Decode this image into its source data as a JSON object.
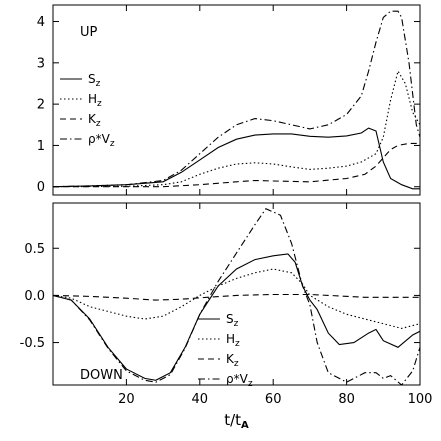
{
  "chart_data": [
    {
      "type": "line",
      "panel_label": "UP",
      "xlim": [
        0,
        100
      ],
      "ylim": [
        -0.2,
        4.4
      ],
      "yticks": [
        0,
        1,
        2,
        3,
        4
      ],
      "ytick_labels": [
        "0",
        "1",
        "2",
        "3",
        "4"
      ],
      "xticks": [
        20,
        40,
        60,
        80,
        100
      ],
      "x_tick_labels_shown": false,
      "xlabel": "",
      "ylabel": "",
      "grid": false,
      "legend_position": "left",
      "series": [
        {
          "name": "S_z",
          "label_main": "S",
          "label_sub": "z",
          "dash": "",
          "points": [
            [
              0,
              0
            ],
            [
              10,
              0.02
            ],
            [
              20,
              0.05
            ],
            [
              30,
              0.12
            ],
            [
              35,
              0.35
            ],
            [
              40,
              0.65
            ],
            [
              45,
              0.95
            ],
            [
              50,
              1.15
            ],
            [
              55,
              1.25
            ],
            [
              60,
              1.28
            ],
            [
              65,
              1.28
            ],
            [
              70,
              1.22
            ],
            [
              75,
              1.2
            ],
            [
              80,
              1.23
            ],
            [
              84,
              1.3
            ],
            [
              86,
              1.42
            ],
            [
              88,
              1.35
            ],
            [
              90,
              0.6
            ],
            [
              92,
              0.2
            ],
            [
              95,
              0.05
            ],
            [
              98,
              -0.05
            ],
            [
              100,
              -0.05
            ]
          ]
        },
        {
          "name": "H_z",
          "label_main": "H",
          "label_sub": "z",
          "dash": "1.5,2.5",
          "points": [
            [
              0,
              0
            ],
            [
              20,
              0.01
            ],
            [
              30,
              0.05
            ],
            [
              35,
              0.12
            ],
            [
              40,
              0.3
            ],
            [
              45,
              0.45
            ],
            [
              50,
              0.55
            ],
            [
              55,
              0.58
            ],
            [
              60,
              0.55
            ],
            [
              65,
              0.48
            ],
            [
              70,
              0.42
            ],
            [
              75,
              0.45
            ],
            [
              80,
              0.5
            ],
            [
              84,
              0.6
            ],
            [
              88,
              0.8
            ],
            [
              90,
              1.2
            ],
            [
              92,
              2.1
            ],
            [
              94,
              2.8
            ],
            [
              96,
              2.5
            ],
            [
              98,
              1.8
            ],
            [
              100,
              1.5
            ]
          ]
        },
        {
          "name": "K_z",
          "label_main": "K",
          "label_sub": "z",
          "dash": "6,4",
          "points": [
            [
              0,
              0
            ],
            [
              30,
              0.0
            ],
            [
              40,
              0.05
            ],
            [
              50,
              0.12
            ],
            [
              55,
              0.15
            ],
            [
              60,
              0.14
            ],
            [
              70,
              0.12
            ],
            [
              80,
              0.2
            ],
            [
              85,
              0.3
            ],
            [
              88,
              0.5
            ],
            [
              90,
              0.7
            ],
            [
              92,
              0.9
            ],
            [
              94,
              1.0
            ],
            [
              97,
              1.05
            ],
            [
              100,
              1.05
            ]
          ]
        },
        {
          "name": "rho*V_z",
          "label_main": "ρ*V",
          "label_sub": "z",
          "dash": "7,3,1.5,3",
          "points": [
            [
              0,
              0
            ],
            [
              10,
              0.02
            ],
            [
              20,
              0.05
            ],
            [
              30,
              0.15
            ],
            [
              35,
              0.4
            ],
            [
              40,
              0.8
            ],
            [
              45,
              1.2
            ],
            [
              50,
              1.5
            ],
            [
              55,
              1.65
            ],
            [
              60,
              1.6
            ],
            [
              65,
              1.5
            ],
            [
              70,
              1.4
            ],
            [
              75,
              1.5
            ],
            [
              80,
              1.75
            ],
            [
              84,
              2.2
            ],
            [
              86,
              2.8
            ],
            [
              88,
              3.5
            ],
            [
              90,
              4.1
            ],
            [
              92,
              4.25
            ],
            [
              94,
              4.25
            ],
            [
              95,
              4.1
            ],
            [
              97,
              3.0
            ],
            [
              99,
              1.5
            ],
            [
              100,
              1.2
            ]
          ]
        }
      ]
    },
    {
      "type": "line",
      "panel_label": "DOWN",
      "xlim": [
        0,
        100
      ],
      "ylim": [
        -0.95,
        0.98
      ],
      "yticks": [
        -0.5,
        0,
        0.5
      ],
      "ytick_labels": [
        "-0.5",
        "0.0",
        "0.5"
      ],
      "xticks": [
        20,
        40,
        60,
        80,
        100
      ],
      "xtick_labels": [
        "20",
        "40",
        "60",
        "80",
        "100"
      ],
      "xlabel": "t/t_A",
      "xlabel_main": "t/t",
      "xlabel_sub": "A",
      "ylabel": "",
      "grid": false,
      "legend_position": "bottom-center",
      "series": [
        {
          "name": "S_z",
          "label_main": "S",
          "label_sub": "z",
          "dash": "",
          "points": [
            [
              0,
              0
            ],
            [
              5,
              -0.05
            ],
            [
              10,
              -0.25
            ],
            [
              15,
              -0.55
            ],
            [
              20,
              -0.78
            ],
            [
              25,
              -0.88
            ],
            [
              28,
              -0.9
            ],
            [
              32,
              -0.82
            ],
            [
              36,
              -0.55
            ],
            [
              40,
              -0.2
            ],
            [
              45,
              0.1
            ],
            [
              50,
              0.28
            ],
            [
              55,
              0.38
            ],
            [
              60,
              0.42
            ],
            [
              64,
              0.44
            ],
            [
              66,
              0.35
            ],
            [
              68,
              0.1
            ],
            [
              70,
              -0.05
            ],
            [
              72,
              -0.15
            ],
            [
              75,
              -0.4
            ],
            [
              78,
              -0.52
            ],
            [
              82,
              -0.5
            ],
            [
              86,
              -0.4
            ],
            [
              88,
              -0.36
            ],
            [
              90,
              -0.48
            ],
            [
              94,
              -0.55
            ],
            [
              98,
              -0.42
            ],
            [
              100,
              -0.38
            ]
          ]
        },
        {
          "name": "H_z",
          "label_main": "H",
          "label_sub": "z",
          "dash": "1.5,2.5",
          "points": [
            [
              0,
              0
            ],
            [
              5,
              -0.03
            ],
            [
              10,
              -0.12
            ],
            [
              20,
              -0.22
            ],
            [
              25,
              -0.25
            ],
            [
              30,
              -0.22
            ],
            [
              35,
              -0.12
            ],
            [
              40,
              0.0
            ],
            [
              45,
              0.1
            ],
            [
              50,
              0.18
            ],
            [
              55,
              0.24
            ],
            [
              60,
              0.28
            ],
            [
              65,
              0.24
            ],
            [
              68,
              0.12
            ],
            [
              70,
              0.0
            ],
            [
              75,
              -0.12
            ],
            [
              80,
              -0.2
            ],
            [
              85,
              -0.25
            ],
            [
              90,
              -0.3
            ],
            [
              95,
              -0.35
            ],
            [
              100,
              -0.3
            ]
          ]
        },
        {
          "name": "K_z",
          "label_main": "K",
          "label_sub": "z",
          "dash": "6,4",
          "points": [
            [
              0,
              0
            ],
            [
              10,
              -0.01
            ],
            [
              20,
              -0.03
            ],
            [
              28,
              -0.05
            ],
            [
              35,
              -0.04
            ],
            [
              42,
              -0.02
            ],
            [
              50,
              0
            ],
            [
              60,
              0.01
            ],
            [
              70,
              0.01
            ],
            [
              75,
              0
            ],
            [
              85,
              -0.02
            ],
            [
              95,
              -0.02
            ],
            [
              100,
              -0.02
            ]
          ]
        },
        {
          "name": "rho*V_z",
          "label_main": "ρ*V",
          "label_sub": "z",
          "dash": "7,3,1.5,3",
          "points": [
            [
              0,
              0
            ],
            [
              5,
              -0.05
            ],
            [
              10,
              -0.26
            ],
            [
              15,
              -0.56
            ],
            [
              20,
              -0.8
            ],
            [
              25,
              -0.9
            ],
            [
              28,
              -0.92
            ],
            [
              32,
              -0.84
            ],
            [
              36,
              -0.56
            ],
            [
              40,
              -0.2
            ],
            [
              45,
              0.15
            ],
            [
              50,
              0.45
            ],
            [
              55,
              0.75
            ],
            [
              58,
              0.92
            ],
            [
              62,
              0.85
            ],
            [
              65,
              0.55
            ],
            [
              68,
              0.1
            ],
            [
              70,
              -0.1
            ],
            [
              72,
              -0.5
            ],
            [
              75,
              -0.82
            ],
            [
              78,
              -0.88
            ],
            [
              80,
              -0.92
            ],
            [
              85,
              -0.82
            ],
            [
              88,
              -0.82
            ],
            [
              90,
              -0.88
            ],
            [
              92,
              -0.85
            ],
            [
              95,
              -0.95
            ],
            [
              98,
              -0.8
            ],
            [
              100,
              -0.55
            ]
          ]
        }
      ]
    }
  ]
}
